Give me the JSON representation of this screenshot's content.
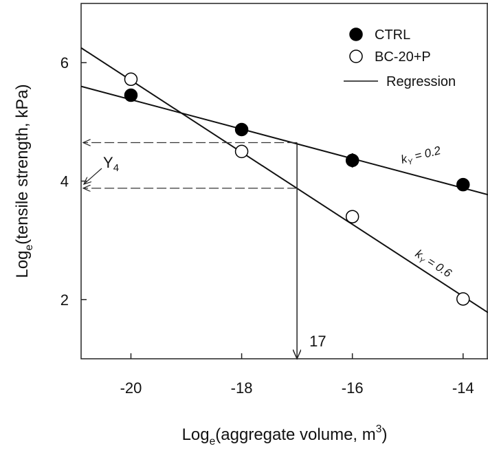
{
  "chart_data": {
    "type": "scatter",
    "x_label": [
      "Log",
      "e",
      "(aggregate volume, m",
      "3",
      ")"
    ],
    "y_label": [
      "Log",
      "e",
      "(tensile strength, kPa)"
    ],
    "xlim": [
      -20.9,
      -13.55
    ],
    "ylim": [
      1,
      7
    ],
    "xticks": [
      -20,
      -18,
      -16,
      -14
    ],
    "yticks": [
      2,
      4,
      6
    ],
    "series": [
      {
        "name": "CTRL",
        "color": "#000000",
        "marker": "filled",
        "x": [
          -20,
          -18,
          -16,
          -14
        ],
        "values": [
          5.45,
          4.87,
          4.35,
          3.94
        ],
        "errors": [
          null,
          null,
          0.12,
          null
        ]
      },
      {
        "name": "BC-20+P",
        "color": "#000000",
        "marker": "open",
        "x": [
          -20,
          -18,
          -16,
          -14
        ],
        "values": [
          5.72,
          4.5,
          3.4,
          2.01
        ]
      }
    ],
    "regression": {
      "name": "Regression",
      "lines": [
        {
          "x": [
            -20.9,
            -13.55
          ],
          "values": [
            5.6,
            3.77
          ]
        },
        {
          "x": [
            -20.9,
            -13.55
          ],
          "values": [
            6.25,
            1.78
          ]
        }
      ]
    },
    "guides": {
      "x": -17,
      "y": [
        4.65,
        3.88
      ],
      "x_label": "17",
      "y_label": [
        "Y",
        "4"
      ]
    },
    "annotations": [
      [
        "k",
        "Y",
        " = 0.2"
      ],
      [
        "k",
        "Y",
        " = 0.6"
      ]
    ]
  }
}
